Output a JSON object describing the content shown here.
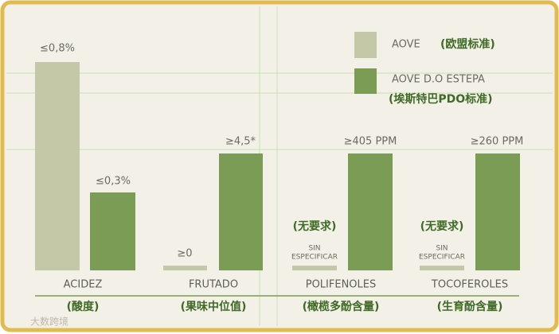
{
  "legend": [
    {
      "label": "AOVE",
      "note": "(欧盟标准)"
    },
    {
      "label": "AOVE D.O ESTEPA",
      "note": "(埃斯特巴PDO标准)"
    }
  ],
  "groups": [
    {
      "name": "ACIDEZ",
      "name_zh": "(酸度)",
      "aove": "≤0,8%",
      "estepa": "≤0,3%"
    },
    {
      "name": "FRUTADO",
      "name_zh": "(果味中位值)",
      "aove": "≥0",
      "estepa": "≥4,5*"
    },
    {
      "name": "POLIFENOLES",
      "name_zh": "(橄榄多酚含量)",
      "aove_note": "(无要求)",
      "aove_line1": "SIN",
      "aove_line2": "ESPECIFICAR",
      "estepa": "≥405 PPM"
    },
    {
      "name": "TOCOFEROLES",
      "name_zh": "(生育酚含量)",
      "aove_note": "(无要求)",
      "aove_line1": "SIN",
      "aove_line2": "ESPECIFICAR",
      "estepa": "≥260 PPM"
    }
  ],
  "watermark": "大数跨境"
}
